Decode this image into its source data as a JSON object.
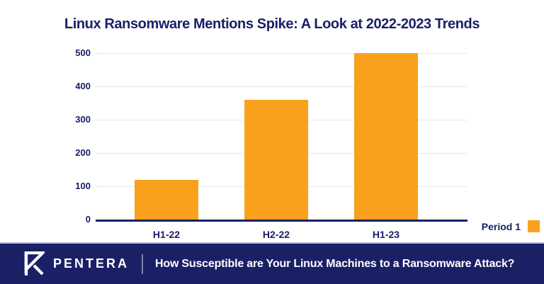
{
  "title": "Linux Ransomware Mentions Spike: A Look at 2022-2023 Trends",
  "chart_data": {
    "type": "bar",
    "title": "Linux Ransomware Mentions Spike: A Look at 2022-2023 Trends",
    "categories": [
      "H1-22",
      "H2-22",
      "H1-23"
    ],
    "values": [
      120,
      360,
      500
    ],
    "xlabel": "",
    "ylabel": "",
    "ylim": [
      0,
      500
    ],
    "yticks": [
      0,
      100,
      200,
      300,
      400,
      500
    ],
    "grid": true,
    "legend_position": "bottom-right",
    "legend_label": "Period 1",
    "bar_color": "#F9A11C"
  },
  "legend": {
    "label": "Period 1"
  },
  "colors": {
    "navy": "#1A2065",
    "orange": "#F9A11C",
    "gridline": "#E9E9EE",
    "footer_background": "#1A2065"
  },
  "footer": {
    "brand": "PENTERA",
    "tagline": "How Susceptible are Your Linux Machines to a Ransomware Attack?"
  }
}
